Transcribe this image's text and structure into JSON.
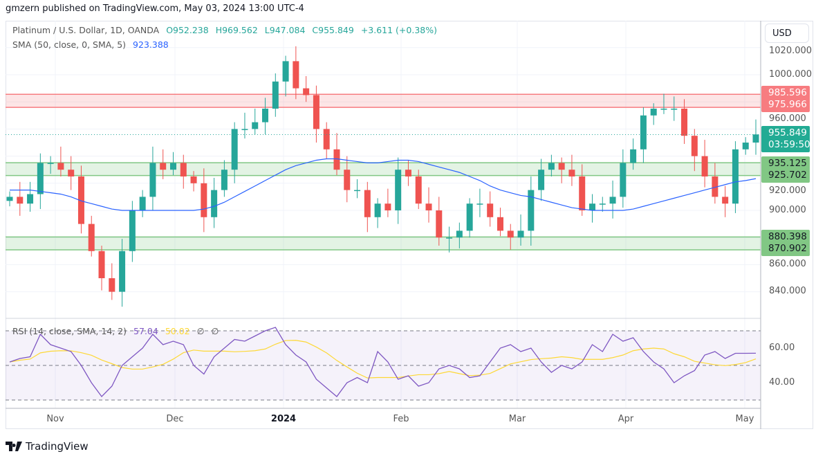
{
  "header": {
    "publisher": "gmzern published on TradingView.com, May 03, 2024 13:00 UTC-4"
  },
  "legend": {
    "symbol": "Platinum / U.S. Dollar, 1D, OANDA",
    "open": "O952.238",
    "high": "H969.562",
    "low": "L947.084",
    "close": "C955.849",
    "change": "+3.611 (+0.38%)",
    "sma_label": "SMA (50, close, 0, SMA, 5)",
    "sma_value": "923.388",
    "rsi_label": "RSI (14, close, SMA, 14, 2)",
    "rsi_value": "57.04",
    "rsi_ma_value": "50.02",
    "rsi_extra1": "∅",
    "rsi_extra2": "∅"
  },
  "price_axis": {
    "currency": "USD",
    "ticks": [
      "1020.000",
      "1000.000",
      "960.000",
      "920.000",
      "900.000",
      "860.000",
      "840.000"
    ],
    "rsi_ticks": [
      "60.00",
      "40.00"
    ]
  },
  "tags": {
    "resistance_top": "985.596",
    "resistance_bottom": "975.966",
    "last_price": "955.849",
    "countdown": "03:59:50",
    "support1_top": "935.125",
    "support1_bottom": "925.702",
    "support2_top": "880.398",
    "support2_bottom": "870.902"
  },
  "time_axis": [
    "Nov",
    "Dec",
    "2024",
    "Feb",
    "Mar",
    "Apr",
    "May"
  ],
  "footer": {
    "brand": "TradingView"
  },
  "colors": {
    "up": "#26a69a",
    "down": "#ef5350",
    "sma": "#2962ff",
    "rsi": "#7e57c2",
    "rsi_ma": "#fdd835",
    "resistance": "#f77c80",
    "support": "#81c784"
  },
  "chart_data": {
    "type": "candlestick",
    "price_range": [
      830,
      1030
    ],
    "zones": [
      {
        "from": 975.966,
        "to": 985.596,
        "kind": "resistance"
      },
      {
        "from": 925.702,
        "to": 935.125,
        "kind": "support"
      },
      {
        "from": 870.902,
        "to": 880.398,
        "kind": "support"
      }
    ],
    "last_price": 955.849,
    "closes": [
      910,
      905,
      912,
      935,
      935,
      930,
      925,
      890,
      870,
      850,
      840,
      870,
      900,
      910,
      935,
      930,
      935,
      925,
      920,
      895,
      915,
      930,
      960,
      960,
      965,
      975,
      995,
      1010,
      990,
      985,
      960,
      945,
      930,
      915,
      915,
      895,
      905,
      900,
      930,
      925,
      905,
      900,
      880,
      880,
      885,
      905,
      905,
      895,
      885,
      880,
      885,
      915,
      930,
      935,
      930,
      925,
      900,
      905,
      905,
      910,
      935,
      945,
      970,
      975,
      975,
      975,
      955,
      940,
      925,
      910,
      905,
      945,
      950,
      956
    ],
    "sma50": [
      915,
      915,
      915,
      914,
      913,
      912,
      910,
      907,
      905,
      903,
      901,
      900,
      900,
      900,
      900,
      900,
      900,
      900,
      900,
      901,
      903,
      906,
      910,
      914,
      918,
      922,
      926,
      930,
      933,
      935,
      937,
      938,
      938,
      937,
      936,
      935,
      935,
      936,
      937,
      937,
      936,
      934,
      932,
      930,
      928,
      925,
      922,
      918,
      915,
      913,
      911,
      910,
      908,
      906,
      904,
      902,
      901,
      900,
      900,
      900,
      900,
      901,
      903,
      905,
      907,
      909,
      911,
      913,
      915,
      917,
      919,
      921,
      922,
      923.4
    ],
    "rsi_range": [
      25,
      75
    ],
    "rsi_levels": [
      70,
      50,
      30
    ],
    "rsi": [
      52,
      54,
      55,
      68,
      62,
      60,
      58,
      50,
      40,
      32,
      38,
      50,
      55,
      60,
      68,
      62,
      64,
      62,
      50,
      45,
      55,
      60,
      65,
      64,
      67,
      70,
      72,
      62,
      56,
      52,
      42,
      37,
      32,
      40,
      43,
      40,
      58,
      52,
      42,
      44,
      38,
      40,
      48,
      50,
      48,
      43,
      44,
      52,
      60,
      62,
      58,
      60,
      52,
      46,
      50,
      48,
      52,
      62,
      58,
      68,
      64,
      66,
      58,
      52,
      48,
      40,
      44,
      47,
      56,
      58,
      54,
      57,
      57,
      57.04
    ]
  }
}
